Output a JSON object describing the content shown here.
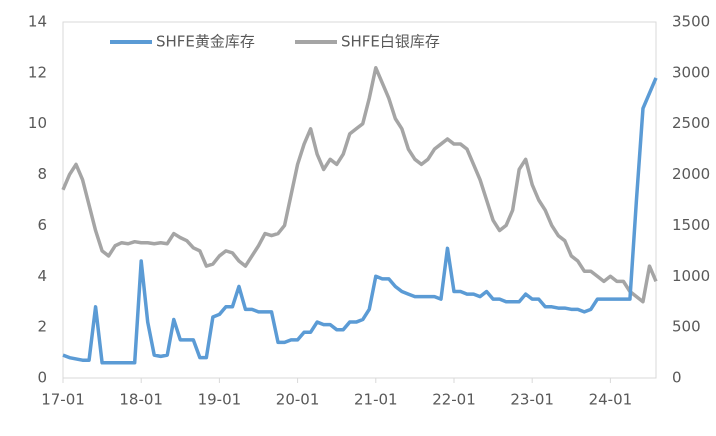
{
  "chart_data": {
    "type": "line",
    "categories": [
      "17-01",
      null,
      null,
      null,
      null,
      null,
      null,
      null,
      null,
      null,
      null,
      null,
      "18-01",
      null,
      null,
      null,
      null,
      null,
      null,
      null,
      null,
      null,
      null,
      null,
      "19-01",
      null,
      null,
      null,
      null,
      null,
      null,
      null,
      null,
      null,
      null,
      null,
      "20-01",
      null,
      null,
      null,
      null,
      null,
      null,
      null,
      null,
      null,
      null,
      null,
      "21-01",
      null,
      null,
      null,
      null,
      null,
      null,
      null,
      null,
      null,
      null,
      null,
      "22-01",
      null,
      null,
      null,
      null,
      null,
      null,
      null,
      null,
      null,
      null,
      null,
      "23-01",
      null,
      null,
      null,
      null,
      null,
      null,
      null,
      null,
      null,
      null,
      null,
      "24-01",
      null,
      null,
      null,
      null,
      null,
      null,
      null
    ],
    "series": [
      {
        "name": "SHFE黄金库存",
        "color": "#5b9bd5",
        "axis": "y",
        "values": [
          0.9,
          0.8,
          0.75,
          0.7,
          0.7,
          2.8,
          0.6,
          0.6,
          0.6,
          0.6,
          0.6,
          0.6,
          4.6,
          2.2,
          0.9,
          0.85,
          0.9,
          2.3,
          1.5,
          1.5,
          1.5,
          0.8,
          0.8,
          2.4,
          2.5,
          2.8,
          2.8,
          3.6,
          2.7,
          2.7,
          2.6,
          2.6,
          2.6,
          1.4,
          1.4,
          1.5,
          1.5,
          1.8,
          1.8,
          2.2,
          2.1,
          2.1,
          1.9,
          1.9,
          2.2,
          2.2,
          2.3,
          2.7,
          4.0,
          3.9,
          3.9,
          3.6,
          3.4,
          3.3,
          3.2,
          3.2,
          3.2,
          3.2,
          3.1,
          5.1,
          3.4,
          3.4,
          3.3,
          3.3,
          3.2,
          3.4,
          3.1,
          3.1,
          3.0,
          3.0,
          3.0,
          3.3,
          3.1,
          3.1,
          2.8,
          2.8,
          2.75,
          2.75,
          2.7,
          2.7,
          2.6,
          2.7,
          3.1,
          3.1,
          3.1,
          3.1,
          3.1,
          3.1,
          7.0,
          10.6,
          11.2,
          11.8
        ]
      },
      {
        "name": "SHFE白银库存",
        "color": "#a5a5a5",
        "axis": "y2",
        "values": [
          1850,
          2000,
          2100,
          1950,
          1700,
          1450,
          1250,
          1200,
          1300,
          1330,
          1320,
          1340,
          1330,
          1330,
          1320,
          1330,
          1320,
          1420,
          1380,
          1350,
          1280,
          1250,
          1100,
          1120,
          1200,
          1250,
          1230,
          1150,
          1100,
          1200,
          1300,
          1420,
          1400,
          1420,
          1500,
          1800,
          2100,
          2300,
          2450,
          2200,
          2050,
          2150,
          2100,
          2200,
          2400,
          2450,
          2500,
          2750,
          3050,
          2900,
          2750,
          2550,
          2450,
          2250,
          2150,
          2100,
          2150,
          2250,
          2300,
          2350,
          2300,
          2300,
          2250,
          2100,
          1950,
          1750,
          1550,
          1450,
          1500,
          1650,
          2050,
          2150,
          1900,
          1750,
          1650,
          1500,
          1400,
          1350,
          1200,
          1150,
          1050,
          1050,
          1000,
          950,
          1000,
          950,
          950,
          850,
          800,
          750,
          1100,
          950
        ]
      }
    ],
    "ylim": [
      0,
      14
    ],
    "yticks": [
      0,
      2,
      4,
      6,
      8,
      10,
      12,
      14
    ],
    "y2lim": [
      0,
      3500
    ],
    "y2ticks": [
      0,
      500,
      1000,
      1500,
      2000,
      2500,
      3000,
      3500
    ],
    "grid": false,
    "legend": "top"
  }
}
